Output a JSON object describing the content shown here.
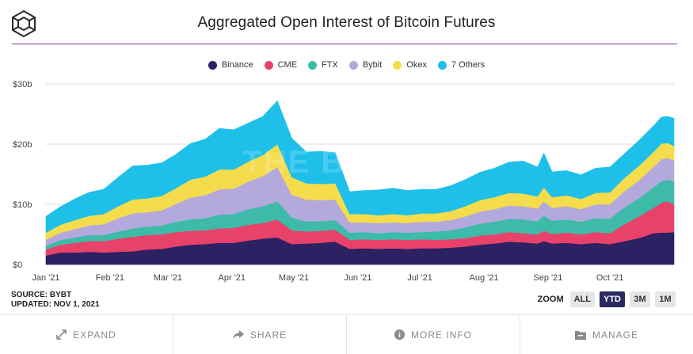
{
  "title": "Aggregated Open Interest of Bitcoin Futures",
  "watermark": "THE BLOCK",
  "source": "SOURCE: BYBT",
  "updated": "UPDATED: NOV 1, 2021",
  "zoom": {
    "label": "ZOOM",
    "options": [
      "ALL",
      "YTD",
      "3M",
      "1M"
    ],
    "active": "YTD"
  },
  "footer": {
    "expand": "EXPAND",
    "share": "SHARE",
    "more_info": "MORE INFO",
    "manage": "MANAGE"
  },
  "icons": {
    "logo": "cube-logo-icon",
    "expand": "expand-arrows-icon",
    "share": "share-arrow-icon",
    "info": "info-icon",
    "manage": "folder-icon"
  },
  "chart_data": {
    "type": "area",
    "stacked": true,
    "title": "Aggregated Open Interest of Bitcoin Futures",
    "y_ticks": [
      "$0",
      "$10b",
      "$20b",
      "$30b"
    ],
    "y_tick_values": [
      0,
      10,
      20,
      30
    ],
    "ylim": [
      0,
      30
    ],
    "y_unit": "billion USD",
    "x_ticks": [
      "Jan '21",
      "Feb '21",
      "Mar '21",
      "Apr '21",
      "May '21",
      "Jun '21",
      "Jul '21",
      "Aug '21",
      "Sep '21",
      "Oct '21"
    ],
    "x_tick_days": [
      0,
      31,
      59,
      90,
      120,
      151,
      181,
      212,
      243,
      273
    ],
    "x_days": [
      0,
      7,
      14,
      21,
      28,
      35,
      42,
      49,
      56,
      63,
      70,
      77,
      84,
      91,
      98,
      105,
      112,
      119,
      126,
      133,
      140,
      147,
      154,
      161,
      168,
      175,
      182,
      189,
      196,
      203,
      210,
      217,
      224,
      231,
      238,
      241,
      245,
      252,
      259,
      266,
      273,
      280,
      287,
      294,
      298,
      301,
      304
    ],
    "series": [
      {
        "name": "Binance",
        "color": "#2b2163",
        "values": [
          1.5,
          2.0,
          2.0,
          2.1,
          2.0,
          2.1,
          2.2,
          2.5,
          2.6,
          3.0,
          3.3,
          3.4,
          3.6,
          3.6,
          4.0,
          4.3,
          4.5,
          3.4,
          3.5,
          3.6,
          3.8,
          2.6,
          2.7,
          2.6,
          2.7,
          2.6,
          2.7,
          2.7,
          2.8,
          3.0,
          3.3,
          3.5,
          3.8,
          3.7,
          3.5,
          3.9,
          3.5,
          3.6,
          3.4,
          3.6,
          3.4,
          3.9,
          4.4,
          5.2,
          5.3,
          5.3,
          5.4
        ]
      },
      {
        "name": "CME",
        "color": "#e8426a",
        "values": [
          1.0,
          1.3,
          1.6,
          1.8,
          1.9,
          2.2,
          2.4,
          2.4,
          2.4,
          2.4,
          2.3,
          2.3,
          2.4,
          2.5,
          2.6,
          2.6,
          3.0,
          2.3,
          2.0,
          2.0,
          2.0,
          1.5,
          1.5,
          1.5,
          1.5,
          1.5,
          1.5,
          1.4,
          1.4,
          1.4,
          1.5,
          1.5,
          1.6,
          1.5,
          1.5,
          1.7,
          1.6,
          1.7,
          1.6,
          1.8,
          1.8,
          2.8,
          3.6,
          4.2,
          5.0,
          5.2,
          4.6
        ]
      },
      {
        "name": "FTX",
        "color": "#3dbba8",
        "values": [
          0.6,
          0.8,
          0.9,
          1.0,
          1.0,
          1.2,
          1.4,
          1.4,
          1.5,
          1.7,
          1.9,
          2.0,
          2.3,
          2.3,
          2.6,
          2.8,
          3.0,
          2.1,
          1.7,
          1.6,
          1.6,
          1.2,
          1.2,
          1.1,
          1.2,
          1.2,
          1.2,
          1.4,
          1.5,
          1.8,
          2.0,
          2.1,
          2.2,
          2.3,
          2.2,
          2.5,
          2.2,
          2.2,
          2.1,
          2.3,
          2.4,
          2.8,
          3.0,
          3.4,
          3.6,
          3.6,
          3.8
        ]
      },
      {
        "name": "Bybit",
        "color": "#b3a9dd",
        "values": [
          1.0,
          1.2,
          1.4,
          1.6,
          1.8,
          2.2,
          2.5,
          2.4,
          2.5,
          3.0,
          3.6,
          3.8,
          4.2,
          4.2,
          4.6,
          5.0,
          5.7,
          3.8,
          3.6,
          3.5,
          3.4,
          1.7,
          1.6,
          1.7,
          1.6,
          1.6,
          1.7,
          1.6,
          1.7,
          1.8,
          2.0,
          2.1,
          2.2,
          2.2,
          2.1,
          2.4,
          2.1,
          2.2,
          2.1,
          2.3,
          2.4,
          2.7,
          3.0,
          3.4,
          3.6,
          3.6,
          3.5
        ]
      },
      {
        "name": "Okex",
        "color": "#f5dc4c",
        "values": [
          1.2,
          1.3,
          1.5,
          1.6,
          1.7,
          2.0,
          2.3,
          2.3,
          2.4,
          2.6,
          3.0,
          3.1,
          3.3,
          3.2,
          3.3,
          3.5,
          3.8,
          2.9,
          2.7,
          2.7,
          2.7,
          1.4,
          1.4,
          1.3,
          1.4,
          1.3,
          1.4,
          1.4,
          1.5,
          1.7,
          1.9,
          2.0,
          2.1,
          2.1,
          2.0,
          2.3,
          1.8,
          1.8,
          1.7,
          1.9,
          2.0,
          2.2,
          2.4,
          2.5,
          2.6,
          2.5,
          2.4
        ]
      },
      {
        "name": "7 Others",
        "color": "#1ec0ea",
        "values": [
          2.7,
          3.0,
          3.5,
          3.9,
          4.1,
          4.8,
          5.6,
          5.5,
          5.5,
          5.6,
          6.0,
          6.2,
          6.8,
          6.6,
          6.4,
          6.4,
          7.2,
          6.5,
          5.2,
          5.4,
          5.1,
          3.7,
          3.9,
          4.2,
          4.3,
          4.1,
          4.0,
          4.0,
          4.2,
          4.4,
          4.6,
          4.8,
          5.1,
          5.4,
          4.9,
          5.7,
          4.2,
          4.1,
          4.0,
          4.1,
          4.2,
          4.0,
          4.2,
          4.3,
          4.4,
          4.4,
          4.6
        ]
      }
    ]
  }
}
